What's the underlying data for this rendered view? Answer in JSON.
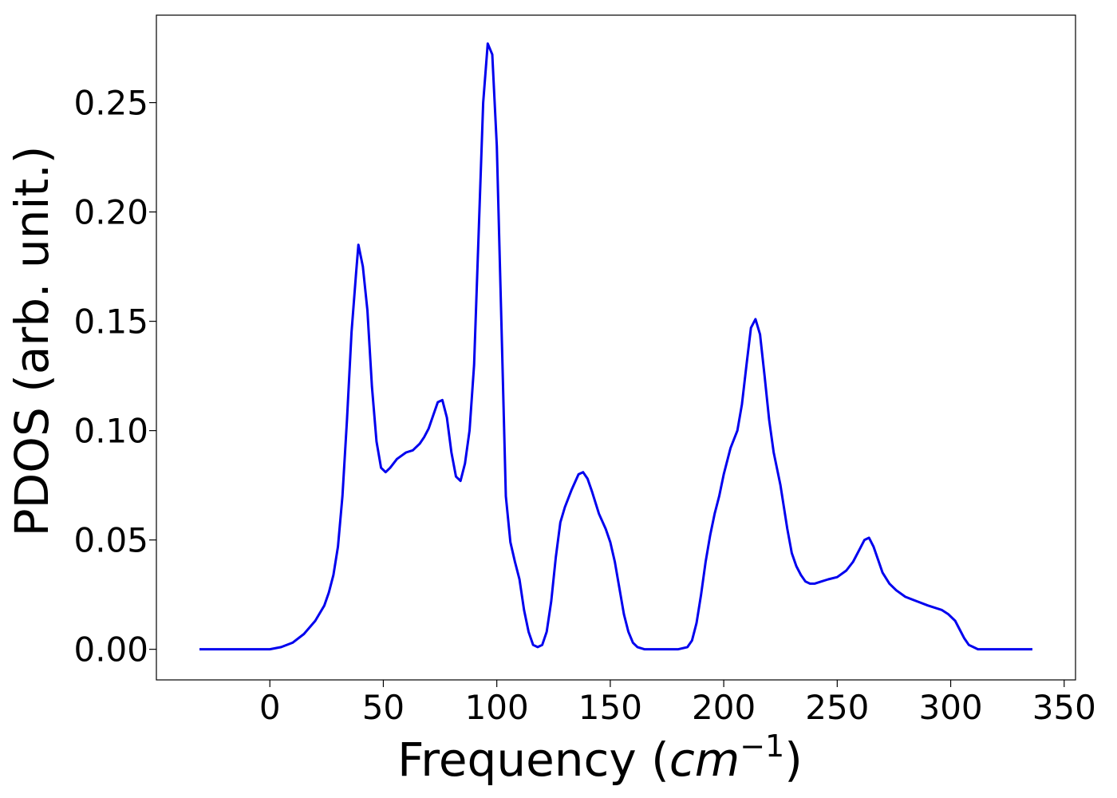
{
  "chart_data": {
    "type": "line",
    "title": "",
    "xlabel_prefix": "Frequency (",
    "xlabel_unit": "cm",
    "xlabel_exp": "−1",
    "xlabel_suffix": ")",
    "ylabel": "PDOS (arb. unit.)",
    "xlim": [
      -50,
      355
    ],
    "ylim": [
      -0.014,
      0.29
    ],
    "xticks": [
      0,
      50,
      100,
      150,
      200,
      250,
      300,
      350
    ],
    "xtick_labels": [
      "0",
      "50",
      "100",
      "150",
      "200",
      "250",
      "300",
      "350"
    ],
    "yticks": [
      0.0,
      0.05,
      0.1,
      0.15,
      0.2,
      0.25
    ],
    "ytick_labels": [
      "0.00",
      "0.05",
      "0.10",
      "0.15",
      "0.20",
      "0.25"
    ],
    "grid": false,
    "series": [
      {
        "color": "#0000ee",
        "x": [
          -31,
          0,
          5,
          10,
          15,
          20,
          24,
          26,
          28,
          30,
          32,
          34,
          36,
          38,
          39,
          41,
          43,
          45,
          47,
          49,
          51,
          53,
          56,
          60,
          63,
          66,
          68,
          70,
          72,
          74,
          76,
          78,
          80,
          82,
          84,
          86,
          88,
          90,
          92,
          94,
          96,
          98,
          100,
          102,
          104,
          106,
          108,
          110,
          112,
          114,
          116,
          118,
          120,
          122,
          124,
          126,
          128,
          130,
          133,
          136,
          138,
          140,
          142,
          145,
          148,
          150,
          152,
          154,
          156,
          158,
          160,
          162,
          165,
          170,
          180,
          184,
          186,
          188,
          190,
          192,
          194,
          196,
          198,
          200,
          203,
          206,
          208,
          210,
          212,
          214,
          216,
          218,
          220,
          222,
          225,
          228,
          230,
          232,
          234,
          236,
          238,
          240,
          243,
          246,
          250,
          254,
          257,
          260,
          262,
          264,
          266,
          268,
          270,
          273,
          276,
          280,
          285,
          290,
          296,
          299,
          302,
          304,
          306,
          308,
          310,
          312,
          315,
          320,
          336
        ],
        "y": [
          0,
          0,
          0.001,
          0.003,
          0.007,
          0.013,
          0.02,
          0.026,
          0.034,
          0.047,
          0.07,
          0.105,
          0.145,
          0.172,
          0.185,
          0.175,
          0.155,
          0.12,
          0.095,
          0.083,
          0.081,
          0.083,
          0.087,
          0.09,
          0.091,
          0.094,
          0.097,
          0.101,
          0.107,
          0.113,
          0.114,
          0.106,
          0.09,
          0.079,
          0.077,
          0.085,
          0.1,
          0.13,
          0.19,
          0.25,
          0.277,
          0.272,
          0.23,
          0.15,
          0.07,
          0.049,
          0.04,
          0.032,
          0.018,
          0.008,
          0.002,
          0.001,
          0.002,
          0.008,
          0.022,
          0.042,
          0.058,
          0.065,
          0.073,
          0.08,
          0.081,
          0.078,
          0.072,
          0.062,
          0.055,
          0.049,
          0.04,
          0.028,
          0.016,
          0.008,
          0.003,
          0.001,
          0,
          0,
          0,
          0.001,
          0.004,
          0.012,
          0.025,
          0.04,
          0.052,
          0.062,
          0.07,
          0.08,
          0.092,
          0.1,
          0.112,
          0.13,
          0.147,
          0.151,
          0.144,
          0.125,
          0.105,
          0.09,
          0.075,
          0.055,
          0.044,
          0.038,
          0.034,
          0.031,
          0.03,
          0.03,
          0.031,
          0.032,
          0.033,
          0.036,
          0.04,
          0.046,
          0.05,
          0.051,
          0.047,
          0.041,
          0.035,
          0.03,
          0.027,
          0.024,
          0.022,
          0.02,
          0.018,
          0.016,
          0.013,
          0.009,
          0.005,
          0.002,
          0.001,
          0,
          0,
          0,
          0
        ]
      }
    ]
  }
}
